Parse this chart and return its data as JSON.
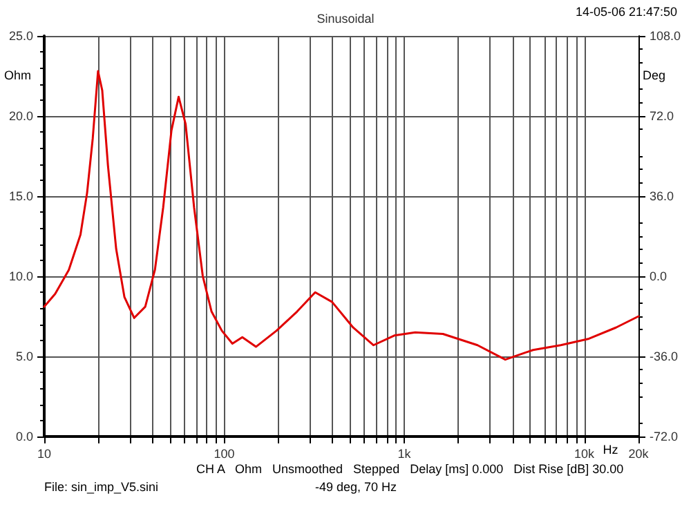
{
  "chart_data": {
    "type": "line",
    "title": "Sinusoidal",
    "xlabel": "Hz",
    "ylabel": "Ohm",
    "y2label": "Deg",
    "annotations": [
      "14-05-06 21:47:50",
      "CH A   Ohm   Unsmoothed   Stepped   Delay [ms] 0.000   Dist Rise [dB] 30.00",
      "File: sin_imp_V5.sini",
      "-49 deg, 70 Hz"
    ],
    "log": "x",
    "grid": true,
    "marker": "none",
    "line_style": "solid",
    "x": [
      10,
      11.5,
      13.7,
      15.9,
      17.3,
      18.6,
      19.9,
      21.0,
      22.6,
      25.1,
      27.9,
      31.6,
      36.4,
      41.2,
      45.8,
      50.9,
      55.8,
      61,
      68,
      76,
      85,
      97,
      111,
      126,
      150,
      195,
      254,
      320,
      397,
      520,
      675,
      880,
      1150,
      1640,
      2550,
      3640,
      5190,
      7400,
      10600,
      15000,
      20000
    ],
    "series": [
      {
        "color": "#e00000",
        "values": [
          8.1,
          8.9,
          10.4,
          12.6,
          15.2,
          18.6,
          22.8,
          21.6,
          16.9,
          11.7,
          8.7,
          7.4,
          8.1,
          10.4,
          14.3,
          19.1,
          21.2,
          19.5,
          14.3,
          10.0,
          7.8,
          6.6,
          5.8,
          6.2,
          5.6,
          6.6,
          7.8,
          9.0,
          8.4,
          6.8,
          5.7,
          6.3,
          6.5,
          6.4,
          5.7,
          4.8,
          5.4,
          5.7,
          6.1,
          6.8,
          7.5
        ]
      }
    ],
    "xlim": [
      10,
      20000
    ],
    "xticks": [
      10,
      {
        "value": 20,
        "label": null
      },
      {
        "value": 30,
        "label": null
      },
      {
        "value": 40,
        "label": null
      },
      {
        "value": 50,
        "label": null
      },
      {
        "value": 60,
        "label": null
      },
      {
        "value": 70,
        "label": null
      },
      {
        "value": 80,
        "label": null
      },
      {
        "value": 90,
        "label": null
      },
      100,
      {
        "value": 200,
        "label": null
      },
      {
        "value": 300,
        "label": null
      },
      {
        "value": 400,
        "label": null
      },
      {
        "value": 500,
        "label": null
      },
      {
        "value": 600,
        "label": null
      },
      {
        "value": 700,
        "label": null
      },
      {
        "value": 800,
        "label": null
      },
      {
        "value": 900,
        "label": null
      },
      {
        "value": 1000,
        "label": "1k"
      },
      {
        "value": 2000,
        "label": null
      },
      {
        "value": 3000,
        "label": null
      },
      {
        "value": 4000,
        "label": null
      },
      {
        "value": 5000,
        "label": null
      },
      {
        "value": 6000,
        "label": null
      },
      {
        "value": 7000,
        "label": null
      },
      {
        "value": 8000,
        "label": null
      },
      {
        "value": 9000,
        "label": null
      },
      {
        "value": 10000,
        "label": "10k"
      },
      {
        "value": 20000,
        "label": "20k"
      }
    ],
    "ylim": [
      0,
      25
    ],
    "yticks": [
      {
        "value": 0,
        "label": "0.0"
      },
      {
        "value": 5,
        "label": "5.0"
      },
      {
        "value": 10,
        "label": "10.0"
      },
      {
        "value": 15,
        "label": "15.0"
      },
      {
        "value": 20,
        "label": "20.0"
      },
      {
        "value": 25,
        "label": "25.0"
      }
    ],
    "y2lim": [
      -72,
      108
    ],
    "y2ticks": [
      {
        "value": -72,
        "label": "-72.0"
      },
      {
        "value": -36,
        "label": "-36.0"
      },
      {
        "value": 0,
        "label": "0.0"
      },
      {
        "value": 36,
        "label": "36.0"
      },
      {
        "value": 72,
        "label": "72.0"
      },
      {
        "value": 108,
        "label": "108.0"
      }
    ]
  }
}
